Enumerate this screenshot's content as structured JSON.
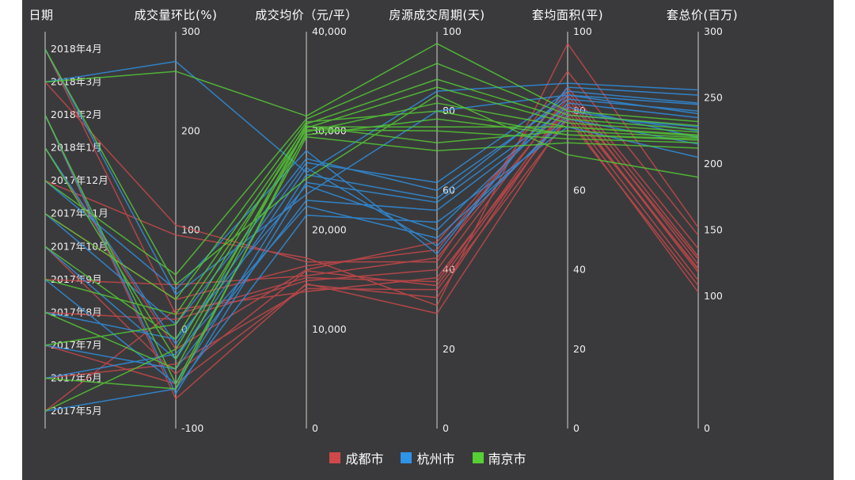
{
  "page": {
    "background_color": "#3a3a3c",
    "text_color": "#ffffff"
  },
  "chart_data": {
    "type": "parallel-coordinates",
    "grid": false,
    "legend_position": "bottom-center",
    "axes": [
      {
        "key": "date",
        "label": "日期",
        "type": "category",
        "categories_top_to_bottom": [
          "2018年4月",
          "2018年3月",
          "2018年2月",
          "2018年1月",
          "2017年12月",
          "2017年11月",
          "2017年10月",
          "2017年9月",
          "2017年8月",
          "2017年7月",
          "2017年6月",
          "2017年5月"
        ]
      },
      {
        "key": "volume_mom_pct",
        "label": "成交量环比(%)",
        "type": "numeric",
        "min": -100,
        "max": 300,
        "ticks": [
          "300",
          "200",
          "100",
          "0",
          "-100"
        ]
      },
      {
        "key": "avg_price",
        "label": "成交均价（元/平）",
        "type": "numeric",
        "min": 0,
        "max": 40000,
        "ticks": [
          "40,000",
          "30,000",
          "20,000",
          "10,000",
          "0"
        ]
      },
      {
        "key": "deal_cycle_days",
        "label": "房源成交周期(天)",
        "type": "numeric",
        "min": 0,
        "max": 100,
        "ticks": [
          "100",
          "80",
          "60",
          "40",
          "20",
          "0"
        ]
      },
      {
        "key": "avg_area",
        "label": "套均面积(平)",
        "type": "numeric",
        "min": 0,
        "max": 100,
        "ticks": [
          "100",
          "80",
          "60",
          "40",
          "20",
          "0"
        ]
      },
      {
        "key": "total_price_million",
        "label": "套总价(百万)",
        "type": "numeric",
        "min": 0,
        "max": 300,
        "ticks": [
          "300",
          "250",
          "200",
          "150",
          "100",
          "0"
        ]
      }
    ],
    "series": [
      {
        "name": "成都市",
        "color": "#d0484a",
        "lines": [
          [
            "2017年5月",
            20,
            13800,
            38,
            80,
            112
          ],
          [
            "2017年6月",
            -35,
            14100,
            35,
            78,
            108
          ],
          [
            "2017年7月",
            -55,
            14500,
            33,
            82,
            118
          ],
          [
            "2017年8月",
            10,
            14900,
            40,
            84,
            124
          ],
          [
            "2017年9月",
            45,
            15400,
            43,
            83,
            128
          ],
          [
            "2017年10月",
            -45,
            15900,
            36,
            81,
            121
          ],
          [
            "2017年11月",
            30,
            16400,
            45,
            86,
            136
          ],
          [
            "2017年12月",
            95,
            17200,
            31,
            97,
            152
          ],
          [
            "2018年1月",
            -20,
            16000,
            47,
            85,
            130
          ],
          [
            "2018年2月",
            -70,
            14600,
            29,
            79,
            103
          ],
          [
            "2018年3月",
            105,
            16800,
            42,
            90,
            146
          ],
          [
            "2018年4月",
            15,
            15200,
            37,
            82,
            120
          ]
        ]
      },
      {
        "name": "杭州市",
        "color": "#2f93e8",
        "lines": [
          [
            "2017年5月",
            -60,
            21500,
            52,
            76,
            205
          ],
          [
            "2017年6月",
            -25,
            22400,
            48,
            78,
            215
          ],
          [
            "2017年7月",
            -40,
            23000,
            55,
            80,
            225
          ],
          [
            "2017年8月",
            -10,
            24500,
            50,
            82,
            235
          ],
          [
            "2017年9月",
            -55,
            25600,
            58,
            84,
            245
          ],
          [
            "2017年10月",
            -30,
            26300,
            46,
            79,
            228
          ],
          [
            "2017年11月",
            5,
            27200,
            60,
            83,
            240
          ],
          [
            "2017年12月",
            40,
            28000,
            44,
            86,
            252
          ],
          [
            "2018年1月",
            -15,
            26800,
            62,
            85,
            246
          ],
          [
            "2018年2月",
            -65,
            24800,
            57,
            81,
            220
          ],
          [
            "2018年3月",
            270,
            25800,
            85,
            87,
            256
          ],
          [
            "2018年4月",
            35,
            23600,
            80,
            84,
            238
          ]
        ]
      },
      {
        "name": "南京市",
        "color": "#56cf35",
        "lines": [
          [
            "2017年5月",
            -20,
            29600,
            78,
            74,
            218
          ],
          [
            "2017年6月",
            -60,
            29900,
            82,
            76,
            222
          ],
          [
            "2017年7月",
            5,
            30100,
            75,
            73,
            216
          ],
          [
            "2017年8月",
            -40,
            30300,
            86,
            77,
            224
          ],
          [
            "2017年9月",
            15,
            30500,
            72,
            75,
            220
          ],
          [
            "2017年10月",
            -10,
            30700,
            88,
            78,
            226
          ],
          [
            "2017年11月",
            30,
            30900,
            80,
            74,
            219
          ],
          [
            "2017年12月",
            55,
            31200,
            92,
            79,
            229
          ],
          [
            "2018年1月",
            -30,
            30400,
            76,
            76,
            221
          ],
          [
            "2018年2月",
            -55,
            29400,
            70,
            72,
            212
          ],
          [
            "2018年3月",
            260,
            31500,
            97,
            80,
            232
          ],
          [
            "2018年4月",
            45,
            25200,
            84,
            69,
            190
          ]
        ]
      }
    ]
  }
}
